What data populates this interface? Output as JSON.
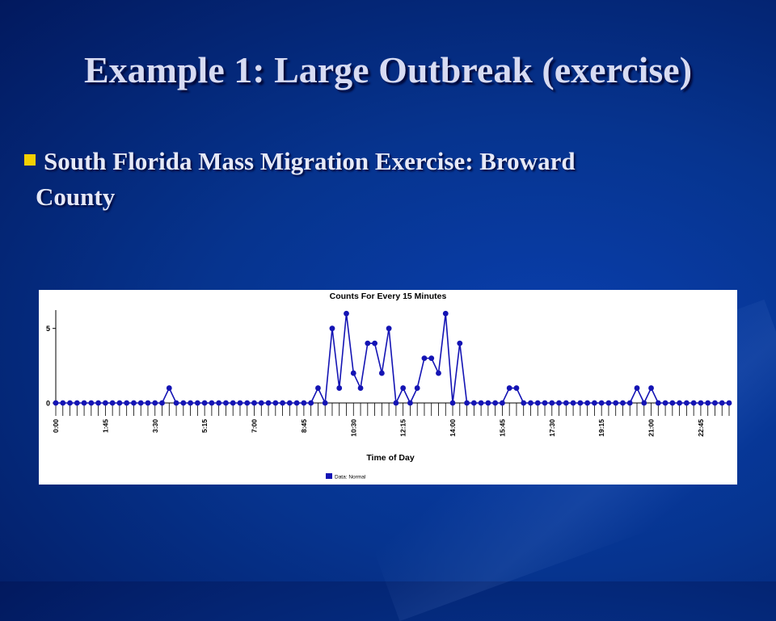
{
  "slide": {
    "title": "Example 1: Large Outbreak (exercise)",
    "bullet_line1": "South Florida Mass Migration Exercise: Broward",
    "bullet_line2": "County",
    "colors": {
      "title": "#d7dbf2",
      "bullet": "#f5d000",
      "series": "#1414b4"
    }
  },
  "chart_data": {
    "type": "line",
    "title": "Counts For Every 15 Minutes",
    "xlabel": "Time of Day",
    "ylabel": "",
    "ylim": [
      0,
      6.5
    ],
    "yticks": [
      0,
      5
    ],
    "grid": false,
    "legend_position": "bottom-left",
    "x_tick_labels": [
      "0:00",
      "1:45",
      "3:30",
      "5:15",
      "7:00",
      "8:45",
      "10:30",
      "12:15",
      "14:00",
      "15:45",
      "17:30",
      "19:15",
      "21:00",
      "22:45"
    ],
    "series": [
      {
        "name": "Data: Normal",
        "color": "#1414b4",
        "values": [
          0,
          0,
          0,
          0,
          0,
          0,
          0,
          0,
          0,
          0,
          0,
          0,
          0,
          0,
          0,
          0,
          1,
          0,
          0,
          0,
          0,
          0,
          0,
          0,
          0,
          0,
          0,
          0,
          0,
          0,
          0,
          0,
          0,
          0,
          0,
          0,
          0,
          1,
          0,
          5,
          1,
          6,
          2,
          1,
          4,
          4,
          2,
          5,
          0,
          1,
          0,
          1,
          3,
          3,
          2,
          6,
          0,
          4,
          0,
          0,
          0,
          0,
          0,
          0,
          1,
          1,
          0,
          0,
          0,
          0,
          0,
          0,
          0,
          0,
          0,
          0,
          0,
          0,
          0,
          0,
          0,
          0,
          1,
          0,
          1,
          0,
          0,
          0,
          0,
          0,
          0,
          0,
          0,
          0,
          0,
          0
        ]
      }
    ]
  }
}
